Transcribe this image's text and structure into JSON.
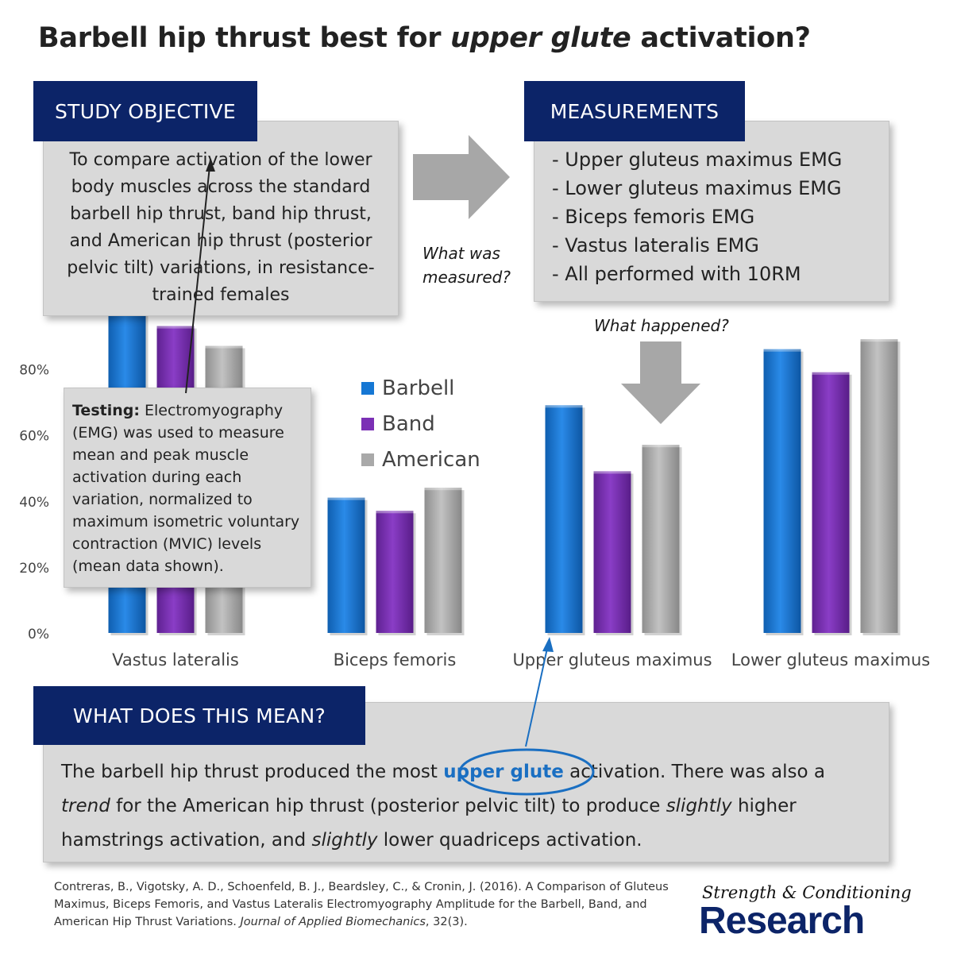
{
  "title": {
    "before": "Barbell hip thrust best for ",
    "emph": "upper glute",
    "after": " activation?"
  },
  "objective": {
    "heading": "STUDY OBJECTIVE",
    "text": "To compare activation of the lower body muscles across the standard barbell hip thrust, band hip thrust, and American hip thrust (posterior pelvic tilt) variations, in resistance-trained females"
  },
  "measurements": {
    "heading": "MEASUREMENTS",
    "items": [
      "- Upper gluteus maximus EMG",
      "- Lower gluteus maximus EMG",
      "- Biceps femoris EMG",
      "- Vastus lateralis EMG",
      "- All performed with 10RM"
    ]
  },
  "notes": {
    "what_measured_1": "What was",
    "what_measured_2": "measured?",
    "what_happened": "What happened?"
  },
  "testing": {
    "label": "Testing:",
    "text": " Electromyography (EMG) was used to measure mean and peak muscle activation during each variation, normalized to maximum isometric voluntary contraction (MVIC) levels (mean data shown)."
  },
  "meaning": {
    "heading": "WHAT DOES THIS MEAN?",
    "p1": "The barbell hip thrust produced the most ",
    "highlight": "upper glute",
    "p2": " activation. There was also a ",
    "trend": "trend",
    "p3": " for the American hip thrust (posterior pelvic tilt) to produce ",
    "slightly1": "slightly",
    "p4": " higher hamstrings activation, and ",
    "slightly2": "slightly",
    "p5": " lower quadriceps activation."
  },
  "citation": {
    "text": "Contreras, B., Vigotsky, A. D., Schoenfeld, B. J., Beardsley, C., & Cronin, J. (2016). A Comparison of Gluteus Maximus, Biceps Femoris, and Vastus Lateralis Electromyography Amplitude for the Barbell, Band, and American Hip Thrust Variations. ",
    "journal": "Journal of Applied Biomechanics",
    "tail": ", 32(3)."
  },
  "brand": {
    "line1": "Strength & Conditioning",
    "line2": "Research"
  },
  "colors": {
    "barbell": "#1577d4",
    "band": "#7b30b5",
    "american": "#a9a9a9",
    "navy": "#0c2468",
    "accent_blue": "#1a6fc2"
  },
  "chart_data": {
    "type": "bar",
    "categories": [
      "Vastus lateralis",
      "Biceps femoris",
      "Upper gluteus maximus",
      "Lower gluteus maximus"
    ],
    "series": [
      {
        "name": "Barbell",
        "values": [
          100,
          41,
          69,
          86
        ]
      },
      {
        "name": "Band",
        "values": [
          93,
          37,
          49,
          79
        ]
      },
      {
        "name": "American",
        "values": [
          87,
          44,
          57,
          89
        ]
      }
    ],
    "yticks": [
      "0%",
      "20%",
      "40%",
      "60%",
      "80%"
    ],
    "ylim": [
      0,
      100
    ],
    "legend_position": "center",
    "grid": false
  }
}
